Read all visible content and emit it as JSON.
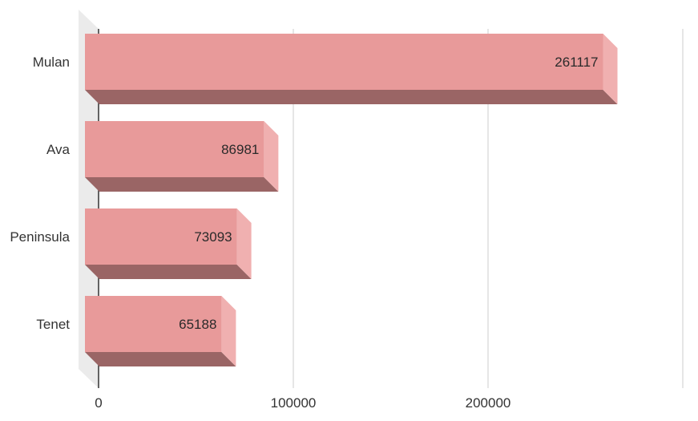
{
  "chart_data": {
    "type": "bar",
    "orientation": "horizontal",
    "style": "3d",
    "title": "",
    "xlabel": "",
    "ylabel": "",
    "categories": [
      "Mulan",
      "Ava",
      "Peninsula",
      "Tenet"
    ],
    "values": [
      261117,
      86981,
      73093,
      65188
    ],
    "data_labels": [
      "261117",
      "86981",
      "73093",
      "65188"
    ],
    "xlim": [
      0,
      300000
    ],
    "x_ticks": [
      0,
      100000,
      200000,
      300000
    ],
    "x_tick_labels": [
      "0",
      "100000",
      "200000",
      ""
    ],
    "grid": true,
    "legend": "none",
    "colors": {
      "bar_front": "#e89a9a",
      "bar_side": "#f0b0b0",
      "bar_bottom": "#9a6565",
      "wall": "#ebebeb",
      "grid": "#cccccc",
      "axis": "#333333"
    }
  }
}
